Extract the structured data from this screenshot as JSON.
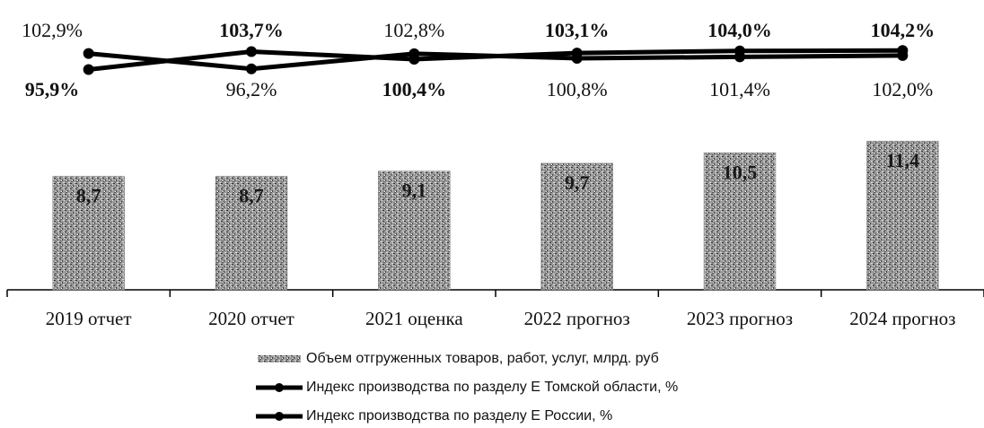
{
  "chart_data": {
    "type": "bar",
    "categories": [
      "2019 отчет",
      "2020 отчет",
      "2021 оценка",
      "2022 прогноз",
      "2023 прогноз",
      "2024 прогноз"
    ],
    "ylim": [
      0,
      22
    ],
    "y2lim": [
      0,
      125
    ],
    "series": [
      {
        "name": "Объем отгруженных товаров, работ, услуг, млрд. руб",
        "type": "bar",
        "color": "#8a8a8a",
        "values": [
          8.7,
          8.7,
          9.1,
          9.7,
          10.5,
          11.4
        ],
        "value_labels": [
          "8,7",
          "8,7",
          "9,1",
          "9,7",
          "10,5",
          "11,4"
        ]
      },
      {
        "name": "Индекс  производства по разделу Е Томской области, %",
        "type": "line",
        "axis": "y2",
        "color": "#000000",
        "values": [
          95.9,
          103.7,
          100.4,
          103.1,
          104.0,
          104.2
        ],
        "value_labels": [
          "95,9%",
          "103,7%",
          "100,4%",
          "103,1%",
          "104,0%",
          "104,2%"
        ]
      },
      {
        "name": "Индекс  производства по разделу Е России, %",
        "type": "line",
        "axis": "y2",
        "color": "#000000",
        "values": [
          102.9,
          96.2,
          102.8,
          100.8,
          101.4,
          102.0
        ],
        "value_labels": [
          "102,9%",
          "96,2%",
          "102,8%",
          "100,8%",
          "101,4%",
          "102,0%"
        ]
      }
    ]
  }
}
